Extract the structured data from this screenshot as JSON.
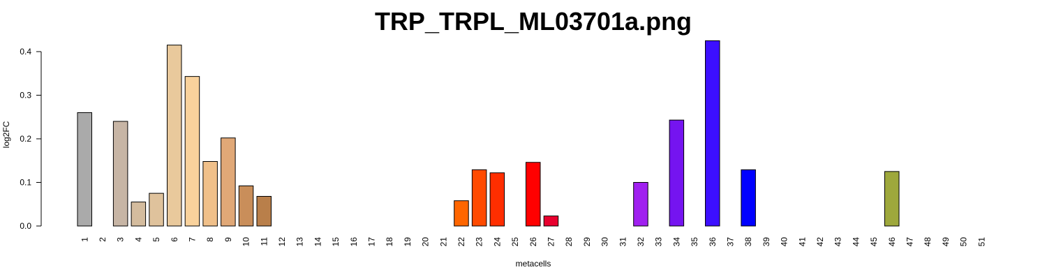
{
  "chart_data": {
    "type": "bar",
    "title": "TRP_TRPL_ML03701a.png",
    "xlabel": "metacells",
    "ylabel": "log2FC",
    "ylim": [
      0,
      0.43
    ],
    "yticks": [
      "0.0",
      "0.1",
      "0.2",
      "0.3",
      "0.4"
    ],
    "grid": false,
    "categories": [
      "1",
      "2",
      "3",
      "4",
      "5",
      "6",
      "7",
      "8",
      "9",
      "10",
      "11",
      "12",
      "13",
      "14",
      "15",
      "16",
      "17",
      "18",
      "19",
      "20",
      "21",
      "22",
      "23",
      "24",
      "25",
      "26",
      "27",
      "28",
      "29",
      "30",
      "31",
      "32",
      "33",
      "34",
      "35",
      "36",
      "37",
      "38",
      "39",
      "40",
      "41",
      "42",
      "43",
      "44",
      "45",
      "46",
      "47",
      "48",
      "49",
      "50",
      "51"
    ],
    "values": [
      0.26,
      0.0,
      0.24,
      0.055,
      0.075,
      0.415,
      0.343,
      0.148,
      0.202,
      0.092,
      0.068,
      0.0,
      0.0,
      0.0,
      0.0,
      0.0,
      0.0,
      0.0,
      0.0,
      0.0,
      0.0,
      0.058,
      0.129,
      0.122,
      0.0,
      0.146,
      0.023,
      0.0,
      0.0,
      0.0,
      0.0,
      0.1,
      0.0,
      0.243,
      0.0,
      0.425,
      0.0,
      0.129,
      0.0,
      0.0,
      0.0,
      0.0,
      0.0,
      0.0,
      0.0,
      0.125,
      0.0,
      0.0,
      0.0,
      0.0,
      0.0
    ],
    "colors": [
      "#aaaaaa",
      "#b4aaa0",
      "#c7b5a5",
      "#d4bc9e",
      "#dfc29c",
      "#e9c99c",
      "#f9d29c",
      "#f0c08a",
      "#e0a877",
      "#c98e5a",
      "#b97f4a",
      "#b97f4a",
      "#b97f4a",
      "#b97f4a",
      "#b97f4a",
      "#b97f4a",
      "#b97f4a",
      "#b97f4a",
      "#b97f4a",
      "#b97f4a",
      "#ff6600",
      "#ff6600",
      "#ff4a00",
      "#ff2e00",
      "#ff1a00",
      "#ff0000",
      "#e8002e",
      "#e8002e",
      "#e8002e",
      "#e8002e",
      "#a020f0",
      "#a020f0",
      "#a020f0",
      "#7514f0",
      "#7514f0",
      "#3c0fff",
      "#3c0fff",
      "#0000ff",
      "#0000ff",
      "#0000ff",
      "#0000ff",
      "#0000ff",
      "#0000ff",
      "#0000ff",
      "#0000ff",
      "#9ea83c",
      "#9ea83c",
      "#9ea83c",
      "#9ea83c",
      "#9ea83c",
      "#9ea83c"
    ]
  }
}
